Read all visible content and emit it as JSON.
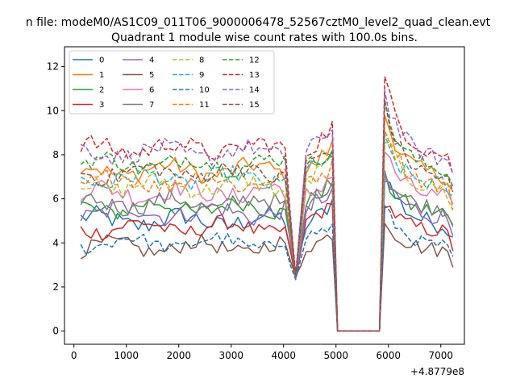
{
  "chart_data": {
    "type": "line",
    "suptitle": "n file: modeM0/AS1C09_011T06_9000006478_52567cztM0_level2_quad_clean.evt",
    "title": "Quadrant 1 module wise count rates with 100.0s bins.",
    "xlabel": "",
    "ylabel": "",
    "offset_text": "+4.8779e8",
    "xlim": [
      -180,
      7450
    ],
    "ylim": [
      -0.6,
      12.9
    ],
    "xticks": [
      0,
      1000,
      2000,
      3000,
      4000,
      5000,
      6000,
      7000
    ],
    "xtick_labels": [
      "0",
      "1000",
      "2000",
      "3000",
      "4000",
      "5000",
      "6000",
      "7000"
    ],
    "yticks": [
      0,
      2,
      4,
      6,
      8,
      10,
      12
    ],
    "ytick_labels": [
      "0",
      "2",
      "4",
      "6",
      "8",
      "10",
      "12"
    ],
    "legend_location": "upper-left",
    "legend_columns": 4,
    "series": [
      {
        "name": "0",
        "color": "#1f77b4",
        "dash": "solid",
        "base": 5.0,
        "amp": 0.45,
        "peak": 7.8
      },
      {
        "name": "1",
        "color": "#ff7f0e",
        "dash": "solid",
        "base": 7.3,
        "amp": 0.4,
        "peak": 10.6
      },
      {
        "name": "2",
        "color": "#2ca02c",
        "dash": "solid",
        "base": 5.6,
        "amp": 0.4,
        "peak": 7.3
      },
      {
        "name": "3",
        "color": "#d62728",
        "dash": "solid",
        "base": 4.7,
        "amp": 0.35,
        "peak": 6.3
      },
      {
        "name": "4",
        "color": "#9467bd",
        "dash": "solid",
        "base": 5.4,
        "amp": 0.45,
        "peak": 7.5
      },
      {
        "name": "5",
        "color": "#8c564b",
        "dash": "solid",
        "base": 3.8,
        "amp": 0.35,
        "peak": 5.4
      },
      {
        "name": "6",
        "color": "#e377c2",
        "dash": "solid",
        "base": 6.3,
        "amp": 0.45,
        "peak": 8.7
      },
      {
        "name": "7",
        "color": "#7f7f7f",
        "dash": "solid",
        "base": 5.8,
        "amp": 0.4,
        "peak": 7.6
      },
      {
        "name": "8",
        "color": "#bcbd22",
        "dash": "dashed",
        "base": 6.6,
        "amp": 0.4,
        "peak": 9.6
      },
      {
        "name": "9",
        "color": "#17becf",
        "dash": "dashed",
        "base": 6.9,
        "amp": 0.4,
        "peak": 9.1
      },
      {
        "name": "10",
        "color": "#1f77b4",
        "dash": "dashed",
        "base": 4.0,
        "amp": 0.3,
        "peak": 6.1
      },
      {
        "name": "11",
        "color": "#ff7f0e",
        "dash": "dashed",
        "base": 6.8,
        "amp": 0.4,
        "peak": 10.2
      },
      {
        "name": "12",
        "color": "#2ca02c",
        "dash": "dashed",
        "base": 7.6,
        "amp": 0.4,
        "peak": 10.9
      },
      {
        "name": "13",
        "color": "#d62728",
        "dash": "dashed",
        "base": 8.3,
        "amp": 0.4,
        "peak": 12.3
      },
      {
        "name": "14",
        "color": "#9467bd",
        "dash": "dashed",
        "base": 8.1,
        "amp": 0.4,
        "peak": 11.6
      },
      {
        "name": "15",
        "color": "#8c564b",
        "dash": "dashed",
        "base": 7.2,
        "amp": 0.4,
        "peak": 11.0
      }
    ],
    "x_start": 130,
    "bin_width": 100,
    "num_points": 72,
    "gap_range": [
      4950,
      5850
    ],
    "dip_x": 4230,
    "dip_value": 2.3
  }
}
